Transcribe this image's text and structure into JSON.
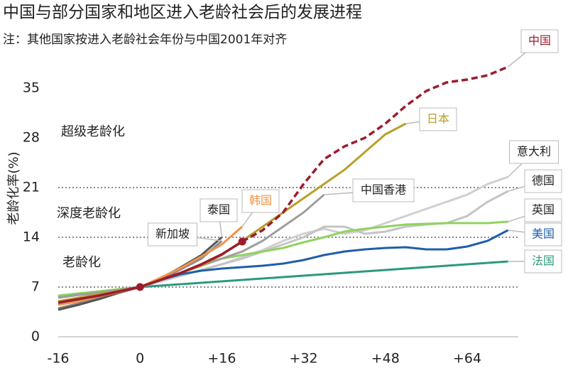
{
  "chart_data": {
    "type": "line",
    "title": "中国与部分国家和地区进入老龄社会后的发展进程",
    "subtitle": "注：其他国家按进入老龄社会年份与中国2001年对齐",
    "y_label": "老龄化率(%)",
    "x": [
      -16,
      -12,
      -8,
      -4,
      0,
      4,
      8,
      12,
      16,
      20,
      24,
      28,
      32,
      36,
      40,
      44,
      48,
      52,
      56,
      60,
      64,
      68,
      72
    ],
    "xlim": [
      -16,
      74
    ],
    "xticks": [
      {
        "value": -16,
        "label": "-16"
      },
      0,
      {
        "value": 16,
        "label": "+16"
      },
      {
        "value": 32,
        "label": "+32"
      },
      {
        "value": 48,
        "label": "+48"
      },
      {
        "value": 64,
        "label": "+64"
      }
    ],
    "ylim": [
      0,
      40
    ],
    "yticks": [
      0,
      7,
      14,
      21,
      28,
      35
    ],
    "reference_lines": [
      7,
      14,
      21
    ],
    "region_labels": [
      "老龄化",
      "深度老龄化",
      "超级老龄化"
    ],
    "series": [
      {
        "name": "中国",
        "color": "#9b1c2e",
        "label_color": "#9b1c2e",
        "projection_from": 20,
        "values": [
          4.8,
          5.3,
          5.8,
          6.4,
          7,
          8,
          9,
          10.2,
          11.6,
          13.4,
          15,
          17.5,
          21.5,
          25,
          26.8,
          28,
          30,
          32.5,
          34.6,
          35.8,
          36.2,
          36.8,
          38
        ]
      },
      {
        "name": "日本",
        "color": "#b8a02a",
        "label_color": "#b8a02a",
        "values": [
          5,
          5.5,
          6,
          6.5,
          7,
          8,
          9,
          10,
          11.5,
          13.5,
          15.5,
          17.5,
          19.5,
          21.5,
          23.5,
          26,
          28.5,
          30,
          null,
          null,
          null,
          null,
          null
        ]
      },
      {
        "name": "韩国",
        "color": "#f0944a",
        "label_color": "#f0944a",
        "values": [
          4.5,
          5,
          5.7,
          6.3,
          7,
          8.3,
          9.7,
          11.3,
          13,
          15.5,
          null,
          null,
          null,
          null,
          null,
          null,
          null,
          null,
          null,
          null,
          null,
          null,
          null
        ]
      },
      {
        "name": "泰国",
        "color": "#555555",
        "label_color": "#222222",
        "values": [
          3.8,
          4.5,
          5.3,
          6.2,
          7,
          8.2,
          9.8,
          11.5,
          14,
          null,
          null,
          null,
          null,
          null,
          null,
          null,
          null,
          null,
          null,
          null,
          null,
          null,
          null
        ]
      },
      {
        "name": "新加坡",
        "color": "#8a8a8a",
        "label_color": "#222222",
        "values": [
          4,
          4.7,
          5.5,
          6.3,
          7,
          8,
          9.5,
          11,
          13.5,
          null,
          null,
          null,
          null,
          null,
          null,
          null,
          null,
          null,
          null,
          null,
          null,
          null,
          null
        ]
      },
      {
        "name": "中国香港",
        "color": "#9e9e9e",
        "label_color": "#222222",
        "values": [
          5.5,
          5.9,
          6.2,
          6.6,
          7,
          8,
          9,
          10,
          11,
          12,
          13.5,
          15.5,
          17.5,
          20,
          null,
          null,
          null,
          null,
          null,
          null,
          null,
          null,
          null
        ]
      },
      {
        "name": "意大利",
        "color": "#cfcfcf",
        "label_color": "#222222",
        "values": [
          5.5,
          6,
          6.3,
          6.7,
          7,
          7.8,
          8.6,
          9.4,
          10.2,
          11.2,
          12.2,
          13.5,
          14.5,
          15.2,
          14.5,
          15,
          16,
          17,
          18,
          19,
          20,
          21.5,
          22.5
        ]
      },
      {
        "name": "德国",
        "color": "#c4c4c4",
        "label_color": "#222222",
        "values": [
          5.6,
          6,
          6.3,
          6.7,
          7,
          7.8,
          8.6,
          9.4,
          10.2,
          11,
          12,
          13,
          14,
          15.5,
          15.5,
          14.5,
          14.8,
          15.5,
          15.8,
          16,
          17,
          19,
          20.5
        ]
      },
      {
        "name": "英国",
        "color": "#8fd35f",
        "label_color": "#222222",
        "values": [
          5.8,
          6.1,
          6.4,
          6.7,
          7,
          8,
          9,
          10,
          11,
          11.5,
          12,
          12.5,
          13.3,
          14,
          14.8,
          15.2,
          15.5,
          15.8,
          15.9,
          16,
          16,
          16,
          16.2
        ]
      },
      {
        "name": "美国",
        "color": "#1f5fa8",
        "label_color": "#1f5fa8",
        "values": [
          5.5,
          5.9,
          6.2,
          6.6,
          7,
          8,
          8.8,
          9.3,
          9.6,
          9.8,
          10,
          10.3,
          10.8,
          11.5,
          12,
          12.3,
          12.5,
          12.6,
          12.3,
          12.3,
          12.7,
          13.5,
          15
        ]
      },
      {
        "name": "法国",
        "color": "#2a9a7e",
        "label_color": "#2a9a7e",
        "values": [
          null,
          null,
          null,
          null,
          7,
          7.2,
          7.4,
          7.6,
          7.8,
          8,
          8.2,
          8.4,
          8.6,
          8.8,
          9,
          9.2,
          9.4,
          9.6,
          9.8,
          10,
          10.2,
          10.4,
          10.6
        ]
      }
    ]
  }
}
